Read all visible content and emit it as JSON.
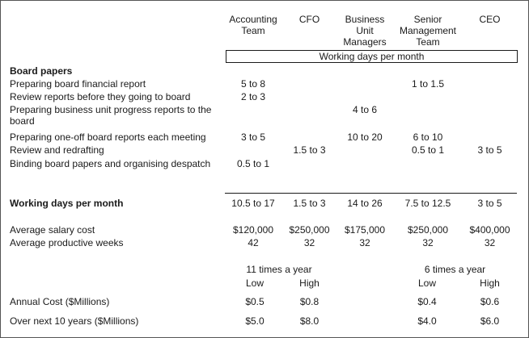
{
  "columns": [
    {
      "key": "acct",
      "label": "Accounting Team"
    },
    {
      "key": "cfo",
      "label": "CFO"
    },
    {
      "key": "bum",
      "label": "Business Unit Managers"
    },
    {
      "key": "smt",
      "label": "Senior Management Team"
    },
    {
      "key": "ceo",
      "label": "CEO"
    }
  ],
  "working_days_header": "Working days per month",
  "board_papers": {
    "heading": "Board papers",
    "rows": [
      {
        "label": "Preparing board financial report",
        "values": [
          "5 to 8",
          "",
          "",
          "1 to 1.5",
          ""
        ]
      },
      {
        "label": "Review reports before they going to board",
        "values": [
          "2 to 3",
          "",
          "",
          "",
          ""
        ]
      },
      {
        "label": "Preparing business unit progress reports to the board",
        "values": [
          "",
          "",
          "4 to 6",
          "",
          ""
        ]
      },
      {
        "label": "Preparing one-off board reports each meeting",
        "values": [
          "3 to 5",
          "",
          "10 to 20",
          "6 to 10",
          ""
        ]
      },
      {
        "label": "Review and redrafting",
        "values": [
          "",
          "1.5 to 3",
          "",
          "0.5 to 1",
          "3 to 5"
        ]
      },
      {
        "label": "Binding board papers and organising despatch",
        "values": [
          "0.5 to 1",
          "",
          "",
          "",
          ""
        ]
      }
    ]
  },
  "total": {
    "label": "Working days per month",
    "values": [
      "10.5 to 17",
      "1.5 to 3",
      "14 to 26",
      "7.5 to 12.5",
      "3 to 5"
    ]
  },
  "salary": {
    "label": "Average salary cost",
    "values": [
      "$120,000",
      "$250,000",
      "$175,000",
      "$250,000",
      "$400,000"
    ]
  },
  "weeks": {
    "label": "Average productive weeks",
    "values": [
      "42",
      "32",
      "32",
      "32",
      "32"
    ]
  },
  "scenarios": [
    {
      "label": "11 times a year",
      "low": "Low",
      "high": "High"
    },
    {
      "label": "6 times a year",
      "low": "Low",
      "high": "High"
    }
  ],
  "annual": {
    "label": "Annual Cost ($Millions)",
    "values": [
      "$0.5",
      "$0.8",
      "$0.4",
      "$0.6"
    ]
  },
  "tenyear": {
    "label": "Over next 10 years ($Millions)",
    "values": [
      "$5.0",
      "$8.0",
      "$4.0",
      "$6.0"
    ]
  }
}
